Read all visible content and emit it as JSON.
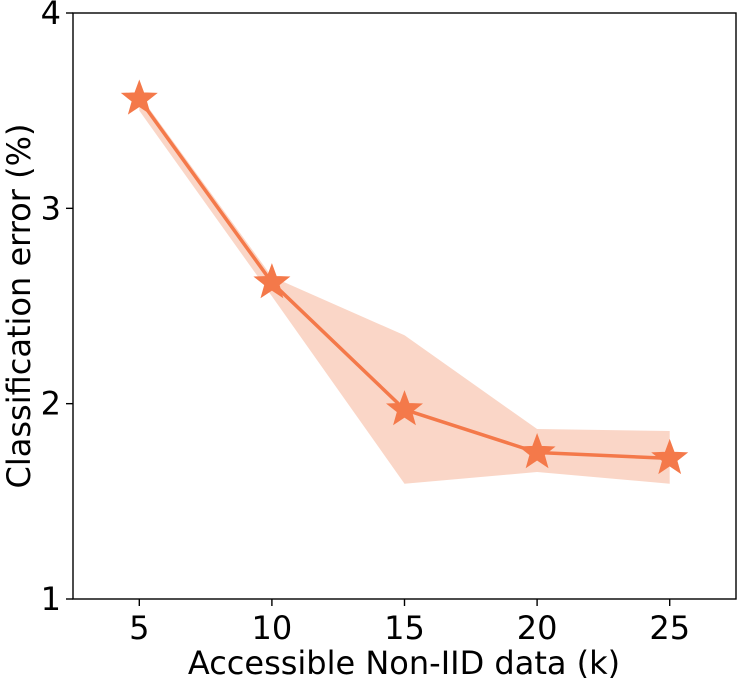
{
  "chart_data": {
    "type": "line",
    "title": "",
    "xlabel": "Accessible Non-IID data (k)",
    "ylabel": "Classification error (%)",
    "xlim": [
      2.5,
      27.5
    ],
    "ylim": [
      1,
      4
    ],
    "x": [
      5,
      10,
      15,
      20,
      25
    ],
    "x_ticks": [
      "5",
      "10",
      "15",
      "20",
      "25"
    ],
    "y_ticks": [
      "1",
      "2",
      "3",
      "4"
    ],
    "series": [
      {
        "values": [
          3.56,
          2.62,
          1.97,
          1.75,
          1.72
        ],
        "band_upper": [
          3.58,
          2.65,
          2.35,
          1.87,
          1.86
        ],
        "band_lower": [
          3.5,
          2.55,
          1.59,
          1.65,
          1.59
        ],
        "color": "#f4794a",
        "band_color": "#f9cfbd",
        "marker": "star"
      }
    ],
    "grid": false,
    "legend": "none"
  }
}
